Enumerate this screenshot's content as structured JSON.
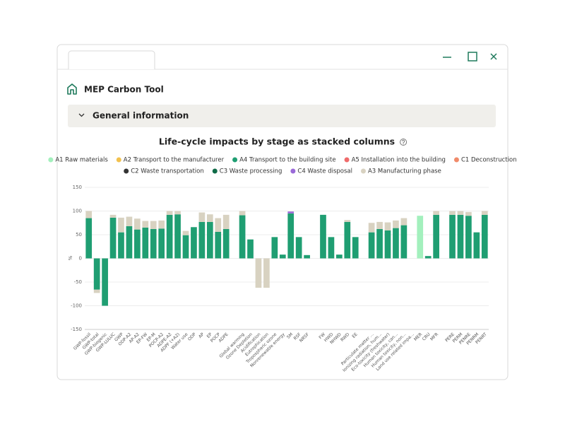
{
  "app": {
    "title": "MEP Carbon Tool"
  },
  "section": {
    "title": "General information"
  },
  "chart_data": {
    "type": "stacked-bar",
    "title": "Life-cycle impacts by stage as stacked columns",
    "y_label": "%",
    "ylim": [
      -150,
      150
    ],
    "yticks": [
      150,
      100,
      50,
      0,
      -50,
      -100,
      -150
    ],
    "grid": true,
    "legend": "top",
    "categories": [
      "GWP-fossil",
      "GWP-total",
      "GWP-biogenic",
      "GWP-LULUC",
      "GWP",
      "ODP-A2",
      "AP-A2",
      "EP-FW",
      "EP-M",
      "POCP-A2",
      "ADPE-A2",
      "ADPF (+A2)",
      "Water use",
      "ODP",
      "AP",
      "EP",
      "POCP",
      "ADPE",
      null,
      "Global warming",
      "Ozone Depletion",
      "Acidification",
      "Eutrophication",
      "Tropospheric ozone",
      "Nonrenewable energy",
      "SM",
      "RSF",
      "NRSF",
      null,
      "FW",
      "HWD",
      "NHWD",
      "RWD",
      "EE",
      null,
      "Particulate matter ...",
      "Ionizing radiation, hum...",
      "Eco-toxicity (freshwater)",
      "Human toxicity, can...",
      "Human toxicity, non...",
      "Land use related impa...",
      "MER",
      "CRU",
      "MFR",
      null,
      "PERE",
      "PERM",
      "PENRE",
      "PENRM",
      "PENRT"
    ],
    "series": [
      {
        "name": "A1 Raw materials",
        "color": "#a3f0bd",
        "values": [
          null,
          null,
          null,
          null,
          null,
          null,
          null,
          null,
          null,
          null,
          null,
          null,
          null,
          null,
          null,
          null,
          null,
          null,
          null,
          null,
          null,
          null,
          null,
          null,
          null,
          null,
          null,
          null,
          null,
          null,
          null,
          null,
          null,
          null,
          null,
          null,
          null,
          null,
          null,
          null,
          null,
          90,
          null,
          null,
          null,
          null,
          null,
          null,
          null,
          null
        ]
      },
      {
        "name": "A2 Transport to the manufacturer",
        "color": "#f2c14e",
        "values": [
          null,
          null,
          null,
          null,
          null,
          null,
          null,
          null,
          null,
          null,
          null,
          null,
          null,
          null,
          null,
          null,
          null,
          null,
          null,
          null,
          null,
          null,
          null,
          null,
          null,
          null,
          null,
          null,
          null,
          null,
          null,
          null,
          null,
          null,
          null,
          null,
          null,
          null,
          null,
          null,
          null,
          null,
          null,
          null,
          null,
          null,
          null,
          null,
          null,
          null
        ]
      },
      {
        "name": "A4 Transport to the building site",
        "color": "#1f9e72",
        "values": [
          85,
          -66,
          -100,
          86,
          55,
          68,
          61,
          65,
          62,
          63,
          92,
          93,
          49,
          66,
          77,
          77,
          56,
          62,
          null,
          91,
          40,
          null,
          null,
          45,
          8,
          95,
          45,
          7,
          null,
          92,
          45,
          8,
          77,
          45,
          null,
          55,
          62,
          59,
          64,
          70,
          null,
          null,
          5,
          92,
          null,
          92,
          92,
          90,
          55,
          92
        ]
      },
      {
        "name": "A5 Installation into the building",
        "color": "#ef6b6b",
        "values": [
          null,
          null,
          null,
          null,
          null,
          null,
          null,
          null,
          null,
          null,
          null,
          null,
          null,
          null,
          null,
          null,
          null,
          null,
          null,
          null,
          null,
          null,
          null,
          null,
          null,
          null,
          null,
          null,
          null,
          null,
          null,
          null,
          null,
          null,
          null,
          null,
          null,
          null,
          null,
          null,
          null,
          null,
          null,
          null,
          null,
          null,
          null,
          null,
          null,
          null
        ]
      },
      {
        "name": "C1 Deconstruction",
        "color": "#f08a6a",
        "values": [
          null,
          null,
          null,
          null,
          null,
          null,
          null,
          null,
          null,
          null,
          null,
          null,
          null,
          null,
          null,
          null,
          null,
          null,
          null,
          null,
          null,
          null,
          null,
          null,
          null,
          null,
          null,
          null,
          null,
          null,
          null,
          null,
          null,
          null,
          null,
          null,
          null,
          null,
          null,
          null,
          null,
          null,
          null,
          null,
          null,
          null,
          null,
          null,
          null,
          null
        ]
      },
      {
        "name": "C2 Waste transportation",
        "color": "#333333",
        "values": [
          null,
          null,
          null,
          null,
          null,
          null,
          null,
          null,
          null,
          null,
          null,
          null,
          null,
          null,
          null,
          null,
          null,
          null,
          null,
          null,
          null,
          null,
          null,
          null,
          null,
          null,
          null,
          null,
          null,
          null,
          null,
          null,
          null,
          null,
          null,
          null,
          null,
          null,
          null,
          null,
          null,
          null,
          null,
          null,
          null,
          null,
          null,
          null,
          null,
          null
        ]
      },
      {
        "name": "C3 Waste processing",
        "color": "#0f6b47",
        "values": [
          null,
          null,
          null,
          null,
          null,
          null,
          null,
          null,
          null,
          null,
          null,
          null,
          null,
          null,
          null,
          null,
          null,
          null,
          null,
          null,
          null,
          null,
          null,
          null,
          null,
          null,
          null,
          null,
          null,
          null,
          null,
          null,
          null,
          null,
          null,
          null,
          null,
          null,
          null,
          null,
          null,
          null,
          null,
          null,
          null,
          null,
          null,
          null,
          null,
          null
        ]
      },
      {
        "name": "C4 Waste disposal",
        "color": "#9a6ad8",
        "values": [
          null,
          null,
          null,
          null,
          null,
          null,
          null,
          null,
          null,
          null,
          null,
          null,
          null,
          null,
          null,
          null,
          null,
          null,
          null,
          null,
          null,
          null,
          null,
          null,
          null,
          4,
          null,
          null,
          null,
          null,
          null,
          null,
          null,
          null,
          null,
          null,
          null,
          null,
          null,
          null,
          null,
          null,
          null,
          null,
          null,
          null,
          null,
          null,
          null,
          null
        ]
      },
      {
        "name": "A3 Manufacturing phase",
        "color": "#d8d2c1",
        "values": [
          15,
          -7,
          null,
          6,
          31,
          20,
          23,
          14,
          17,
          17,
          8,
          7,
          9,
          null,
          20,
          16,
          29,
          30,
          null,
          9,
          null,
          -62,
          -62,
          null,
          null,
          null,
          null,
          null,
          null,
          null,
          null,
          null,
          4,
          null,
          null,
          20,
          15,
          17,
          16,
          15,
          null,
          null,
          null,
          8,
          null,
          8,
          8,
          8,
          null,
          8
        ]
      }
    ]
  }
}
